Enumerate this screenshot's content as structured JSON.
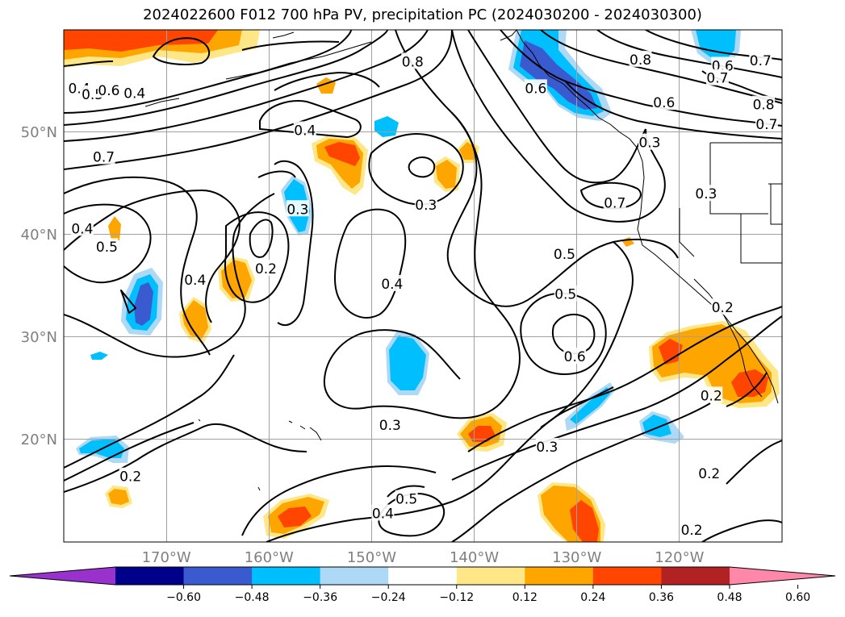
{
  "title": "2024022600 F012 700 hPa PV, precipitation PC (2024030200 - 2024030300)",
  "map": {
    "lon_range": [
      -180,
      -110
    ],
    "lat_range": [
      10,
      60
    ],
    "lat_labels": [
      {
        "lat": 50,
        "text": "50°N"
      },
      {
        "lat": 40,
        "text": "40°N"
      },
      {
        "lat": 30,
        "text": "30°N"
      },
      {
        "lat": 20,
        "text": "20°N"
      }
    ],
    "lon_labels": [
      {
        "lon": -170,
        "text": "170°W"
      },
      {
        "lon": -160,
        "text": "160°W"
      },
      {
        "lon": -150,
        "text": "150°W"
      },
      {
        "lon": -140,
        "text": "140°W"
      },
      {
        "lon": -130,
        "text": "130°W"
      },
      {
        "lon": -120,
        "text": "120°W"
      }
    ],
    "grid_lats": [
      20,
      30,
      40,
      50
    ],
    "grid_lons": [
      -170,
      -160,
      -150,
      -140,
      -130,
      -120
    ],
    "contour_labels": [
      {
        "text": "0.8",
        "lon": -146,
        "lat": 56.9
      },
      {
        "text": "0.8",
        "lon": -123.8,
        "lat": 57.1
      },
      {
        "text": "0.6",
        "lon": -115.8,
        "lat": 56.5
      },
      {
        "text": "0.7",
        "lon": -112.1,
        "lat": 57
      },
      {
        "text": "0.7",
        "lon": -116.3,
        "lat": 55.3
      },
      {
        "text": "0.6",
        "lon": -134,
        "lat": 54.3
      },
      {
        "text": "0.6",
        "lon": -121.5,
        "lat": 52.9
      },
      {
        "text": "0.8",
        "lon": -111.8,
        "lat": 52.7
      },
      {
        "text": "0.7",
        "lon": -111.5,
        "lat": 50.8
      },
      {
        "text": "0.4",
        "lon": -178.5,
        "lat": 54.3
      },
      {
        "text": "0.5",
        "lon": -177.2,
        "lat": 53.7
      },
      {
        "text": "0.6",
        "lon": -175.6,
        "lat": 54.1
      },
      {
        "text": "0.4",
        "lon": -173.1,
        "lat": 53.8
      },
      {
        "text": "0.4",
        "lon": -156.5,
        "lat": 50.2
      },
      {
        "text": "0.3",
        "lon": -122.9,
        "lat": 49
      },
      {
        "text": "0.7",
        "lon": -176.1,
        "lat": 47.6
      },
      {
        "text": "0.3",
        "lon": -157.2,
        "lat": 42.5
      },
      {
        "text": "0.3",
        "lon": -144.7,
        "lat": 42.9
      },
      {
        "text": "0.7",
        "lon": -126.3,
        "lat": 43.1
      },
      {
        "text": "0.3",
        "lon": -117.4,
        "lat": 44
      },
      {
        "text": "0.4",
        "lon": -178.2,
        "lat": 40.6
      },
      {
        "text": "0.5",
        "lon": -175.8,
        "lat": 38.8
      },
      {
        "text": "0.2",
        "lon": -160.3,
        "lat": 36.7
      },
      {
        "text": "0.4",
        "lon": -167.2,
        "lat": 35.6
      },
      {
        "text": "0.4",
        "lon": -148,
        "lat": 35.2
      },
      {
        "text": "0.5",
        "lon": -131.2,
        "lat": 38.1
      },
      {
        "text": "0.5",
        "lon": -131.1,
        "lat": 34.2
      },
      {
        "text": "0.2",
        "lon": -115.8,
        "lat": 32.9
      },
      {
        "text": "0.6",
        "lon": -130.2,
        "lat": 28.1
      },
      {
        "text": "0.2",
        "lon": -116.9,
        "lat": 24.3
      },
      {
        "text": "0.3",
        "lon": -148.2,
        "lat": 21.4
      },
      {
        "text": "0.3",
        "lon": -132.9,
        "lat": 19.3
      },
      {
        "text": "0.2",
        "lon": -173.5,
        "lat": 16.4
      },
      {
        "text": "0.5",
        "lon": -146.6,
        "lat": 14.2
      },
      {
        "text": "0.4",
        "lon": -148.9,
        "lat": 12.8
      },
      {
        "text": "0.2",
        "lon": -117.1,
        "lat": 16.7
      },
      {
        "text": "0.2",
        "lon": -118.8,
        "lat": 11.2
      }
    ]
  },
  "colorbar": {
    "labels": [
      "−0.60",
      "−0.48",
      "−0.36",
      "−0.24",
      "−0.12",
      "0.12",
      "0.24",
      "0.36",
      "0.48",
      "0.60"
    ],
    "colors": [
      "#9932cc",
      "#00008b",
      "#3a5bcf",
      "#00bfff",
      "#add8f6",
      "#ffffff",
      "#ffe787",
      "#ffa500",
      "#ff4500",
      "#b22222",
      "#ff88aa"
    ],
    "level_colors": {
      "neg_high": "#3a5bcf",
      "neg_mid": "#00bfff",
      "neg_low": "#add8f6",
      "pos_low": "#ffe787",
      "pos_mid": "#ffa500",
      "pos_high": "#ff4500"
    }
  }
}
